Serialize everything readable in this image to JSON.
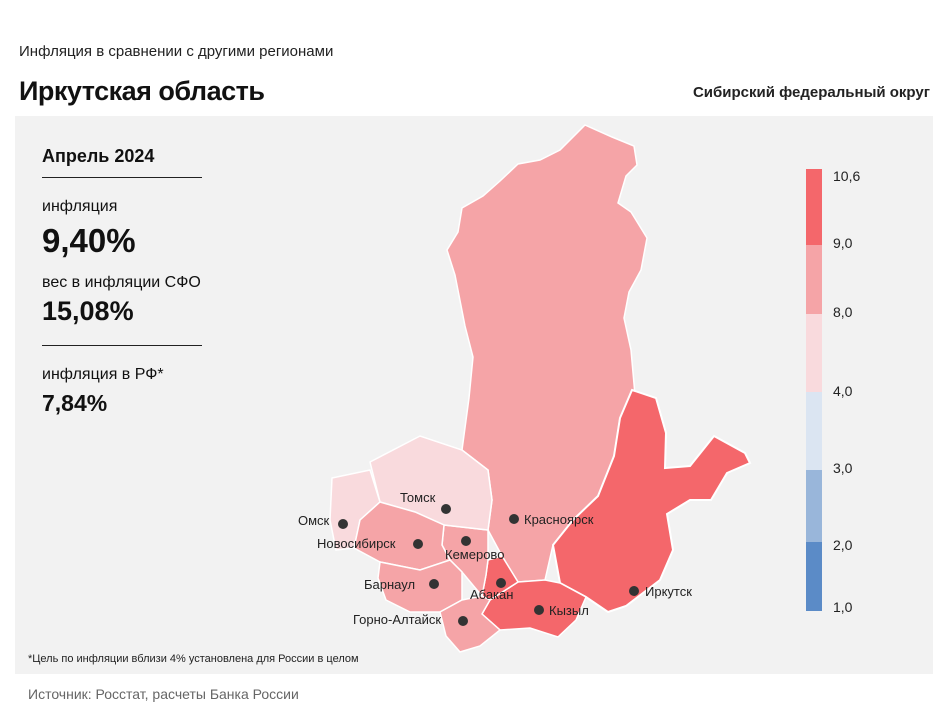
{
  "header": {
    "subtitle": "Инфляция  в сравнении  с другими  регионами",
    "region": "Иркутская область",
    "district": "Сибирский федеральный округ"
  },
  "info": {
    "period": "Апрель 2024",
    "inflation_label": "инфляция",
    "inflation_value": "9,40%",
    "weight_label": "вес в инфляции  СФО",
    "weight_value": "15,08%",
    "rf_label": "инфляция  в РФ*",
    "rf_value": "7,84%"
  },
  "legend": {
    "ticks": [
      "10,6",
      "9,0",
      "8,0",
      "4,0",
      "3,0",
      "2,0",
      "1,0"
    ],
    "bins": [
      {
        "from": "9,0",
        "to": "10,6",
        "color": "#f4676b"
      },
      {
        "from": "8,0",
        "to": "9,0",
        "color": "#f5a4a7"
      },
      {
        "from": "4,0",
        "to": "8,0",
        "color": "#f9dadd"
      },
      {
        "from": "3,0",
        "to": "4,0",
        "color": "#dbe5f2"
      },
      {
        "from": "2,0",
        "to": "3,0",
        "color": "#99b6da"
      },
      {
        "from": "1,0",
        "to": "2,0",
        "color": "#5b8bc7"
      }
    ]
  },
  "regions": [
    {
      "name": "Красноярский край",
      "color": "#f5a4a7"
    },
    {
      "name": "Иркутская область",
      "color": "#f4676b",
      "highlighted": true
    },
    {
      "name": "Республика Тыва",
      "color": "#f4676b"
    },
    {
      "name": "Республика Хакасия",
      "color": "#f4676b"
    },
    {
      "name": "Кемеровская область",
      "color": "#f5a4a7"
    },
    {
      "name": "Новосибирская область",
      "color": "#f5a4a7"
    },
    {
      "name": "Алтайский край",
      "color": "#f5a4a7"
    },
    {
      "name": "Республика Алтай",
      "color": "#f5a4a7"
    },
    {
      "name": "Томская область",
      "color": "#f9dadd"
    },
    {
      "name": "Омская область",
      "color": "#f9dadd"
    }
  ],
  "cities": [
    "Томск",
    "Омск",
    "Новосибирск",
    "Кемерово",
    "Барнаул",
    "Абакан",
    "Горно-Алтайск",
    "Красноярск",
    "Кызыл",
    "Иркутск"
  ],
  "footnote": "*Цель по инфляции вблизи 4% установлена для России в целом",
  "source": "Источник: Росстат, расчеты Банка России"
}
